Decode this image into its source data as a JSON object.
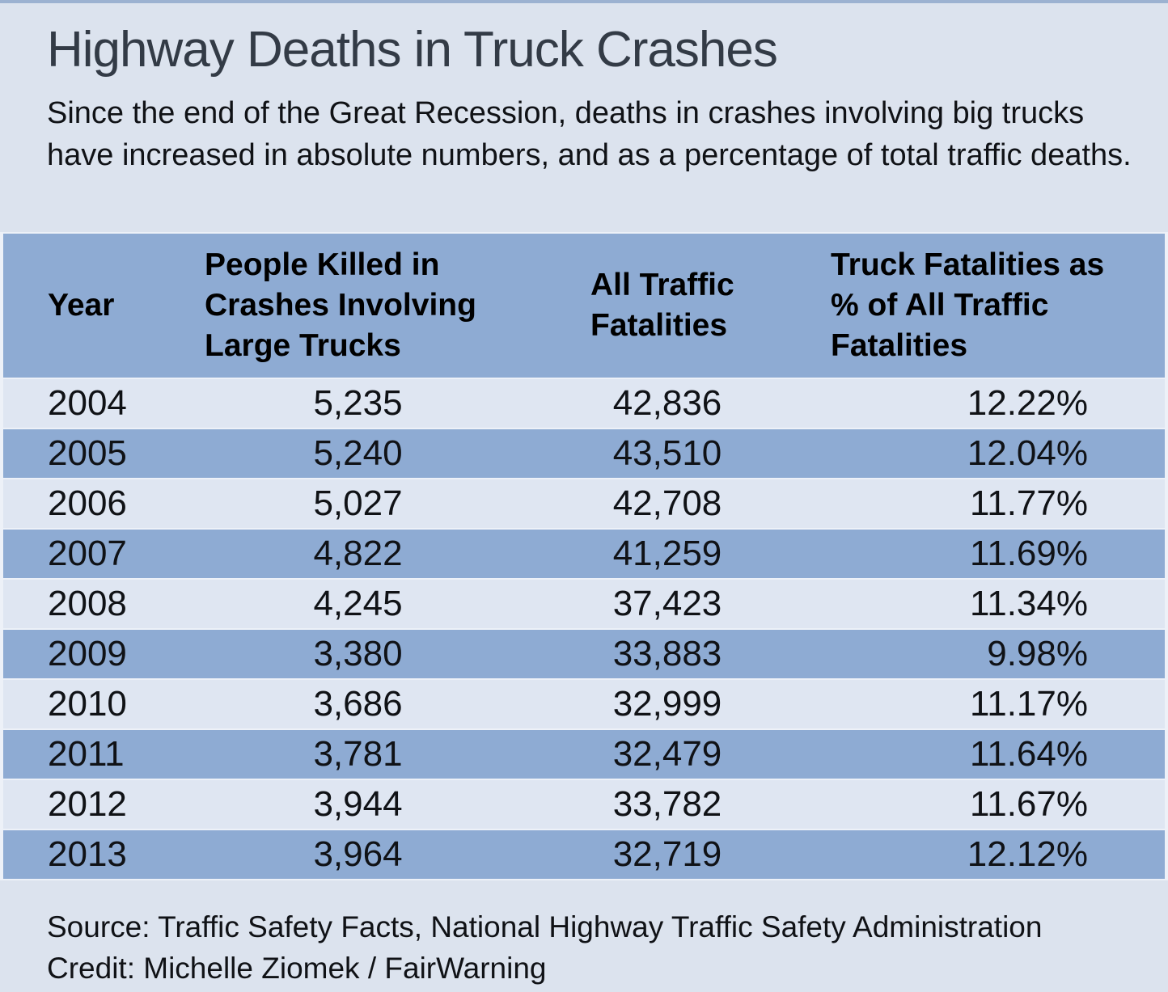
{
  "title": "Highway Deaths in Truck Crashes",
  "subtitle": "Since the end of the Great Recession, deaths in crashes involving big trucks have increased in absolute numbers, and as a percentage of total traffic deaths.",
  "table": {
    "headers": {
      "year": "Year",
      "truck_deaths": "People Killed in Crashes Involving Large Trucks",
      "all_fatalities": "All Traffic Fatalities",
      "pct_of_all": "Truck Fatalities as % of All Traffic Fatalities"
    },
    "rows": [
      {
        "year": "2004",
        "truck_deaths": "5,235",
        "all_fatalities": "42,836",
        "pct_of_all": "12.22%"
      },
      {
        "year": "2005",
        "truck_deaths": "5,240",
        "all_fatalities": "43,510",
        "pct_of_all": "12.04%"
      },
      {
        "year": "2006",
        "truck_deaths": "5,027",
        "all_fatalities": "42,708",
        "pct_of_all": "11.77%"
      },
      {
        "year": "2007",
        "truck_deaths": "4,822",
        "all_fatalities": "41,259",
        "pct_of_all": "11.69%"
      },
      {
        "year": "2008",
        "truck_deaths": "4,245",
        "all_fatalities": "37,423",
        "pct_of_all": "11.34%"
      },
      {
        "year": "2009",
        "truck_deaths": "3,380",
        "all_fatalities": "33,883",
        "pct_of_all": "9.98%"
      },
      {
        "year": "2010",
        "truck_deaths": "3,686",
        "all_fatalities": "32,999",
        "pct_of_all": "11.17%"
      },
      {
        "year": "2011",
        "truck_deaths": "3,781",
        "all_fatalities": "32,479",
        "pct_of_all": "11.64%"
      },
      {
        "year": "2012",
        "truck_deaths": "3,944",
        "all_fatalities": "33,782",
        "pct_of_all": "11.67%"
      },
      {
        "year": "2013",
        "truck_deaths": "3,964",
        "all_fatalities": "32,719",
        "pct_of_all": "12.12%"
      }
    ]
  },
  "footer": {
    "source": "Source: Traffic Safety Facts, National Highway Traffic Safety Administration",
    "credit": "Credit: Michelle Ziomek / FairWarning"
  },
  "colors": {
    "page_bg": "#dce3ee",
    "top_border": "#9cb2d1",
    "row_dark": "#8eabd3",
    "row_light": "#dfe6f2",
    "separator": "#edf1f8",
    "title_text": "#333b46",
    "body_text": "#101216"
  },
  "chart_data": {
    "type": "table",
    "title": "Highway Deaths in Truck Crashes",
    "subtitle": "Since the end of the Great Recession, deaths in crashes involving big trucks have increased in absolute numbers, and as a percentage of total traffic deaths.",
    "columns": [
      "Year",
      "People Killed in Crashes Involving Large Trucks",
      "All Traffic Fatalities",
      "Truck Fatalities as % of All Traffic Fatalities"
    ],
    "categories": [
      2004,
      2005,
      2006,
      2007,
      2008,
      2009,
      2010,
      2011,
      2012,
      2013
    ],
    "series": [
      {
        "name": "People Killed in Crashes Involving Large Trucks",
        "values": [
          5235,
          5240,
          5027,
          4822,
          4245,
          3380,
          3686,
          3781,
          3944,
          3964
        ]
      },
      {
        "name": "All Traffic Fatalities",
        "values": [
          42836,
          43510,
          42708,
          41259,
          37423,
          33883,
          32999,
          32479,
          33782,
          32719
        ]
      },
      {
        "name": "Truck Fatalities as % of All Traffic Fatalities (%)",
        "values": [
          12.22,
          12.04,
          11.77,
          11.69,
          11.34,
          9.98,
          11.17,
          11.64,
          11.67,
          12.12
        ]
      }
    ],
    "source": "Traffic Safety Facts, National Highway Traffic Safety Administration",
    "credit": "Michelle Ziomek / FairWarning"
  }
}
